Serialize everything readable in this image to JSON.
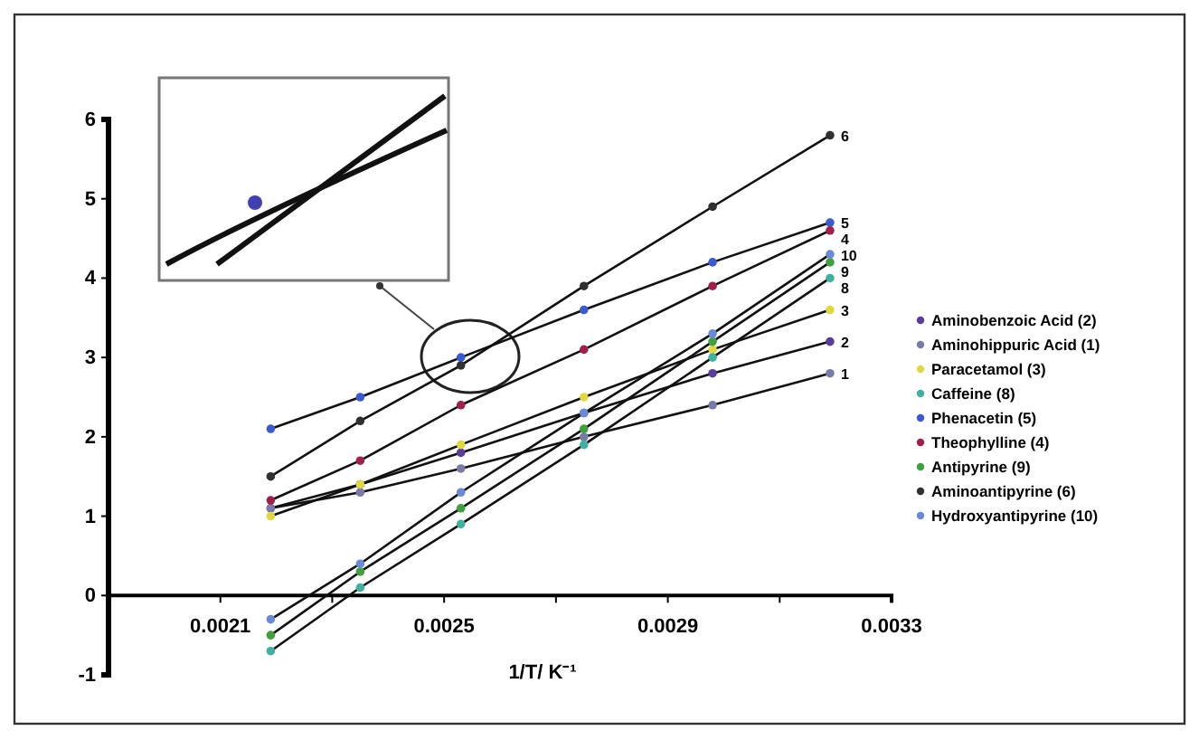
{
  "chart_data": {
    "type": "line",
    "xlabel": "1/T/ K⁻¹",
    "xlim": [
      0.0019,
      0.0033
    ],
    "ylim": [
      -1,
      6
    ],
    "xticks": [
      {
        "value": 0.0021,
        "label": "0.0021"
      },
      {
        "value": 0.0023,
        "label": null
      },
      {
        "value": 0.0025,
        "label": "0.0025"
      },
      {
        "value": 0.0027,
        "label": null
      },
      {
        "value": 0.0029,
        "label": "0.0029"
      },
      {
        "value": 0.0031,
        "label": null
      },
      {
        "value": 0.0033,
        "label": "0.0033"
      }
    ],
    "yticks": [
      -1,
      0,
      1,
      2,
      3,
      4,
      5,
      6
    ],
    "x": [
      0.00219,
      0.00235,
      0.00253,
      0.00275,
      0.00298,
      0.00319
    ],
    "marker": "circle",
    "line_style": "solid",
    "grid": false,
    "legend": "right",
    "series": [
      {
        "name": "Aminobenzoic Acid (2)",
        "color": "#5a3c9a",
        "values": [
          1.1,
          1.4,
          1.8,
          2.3,
          2.8,
          3.2
        ]
      },
      {
        "name": "Aminohippuric Acid (1)",
        "color": "#7a7aa8",
        "values": [
          1.1,
          1.3,
          1.6,
          2.0,
          2.4,
          2.8
        ]
      },
      {
        "name": "Paracetamol (3)",
        "color": "#e0d840",
        "values": [
          1.0,
          1.4,
          1.9,
          2.5,
          3.1,
          3.6
        ]
      },
      {
        "name": "Caffeine (8)",
        "color": "#40b0a0",
        "values": [
          -0.7,
          0.1,
          0.9,
          1.9,
          3.0,
          4.0
        ]
      },
      {
        "name": "Phenacetin (5)",
        "color": "#3a5ad0",
        "values": [
          2.1,
          2.5,
          3.0,
          3.6,
          4.2,
          4.7
        ]
      },
      {
        "name": "Theophylline (4)",
        "color": "#a0204a",
        "values": [
          1.2,
          1.7,
          2.4,
          3.1,
          3.9,
          4.6
        ]
      },
      {
        "name": "Antipyrine (9)",
        "color": "#40a040",
        "values": [
          -0.5,
          0.3,
          1.1,
          2.1,
          3.2,
          4.2
        ]
      },
      {
        "name": "Aminoantipyrine (6)",
        "color": "#303030",
        "values": [
          1.5,
          2.2,
          2.9,
          3.9,
          4.9,
          5.8
        ]
      },
      {
        "name": "Hydroxyantipyrine (10)",
        "color": "#6a8ad8",
        "values": [
          -0.3,
          0.4,
          1.3,
          2.3,
          3.3,
          4.3
        ]
      }
    ],
    "annotations": [
      "6",
      "5",
      "4",
      "10",
      "9",
      "8",
      "3",
      "2",
      "1"
    ]
  }
}
